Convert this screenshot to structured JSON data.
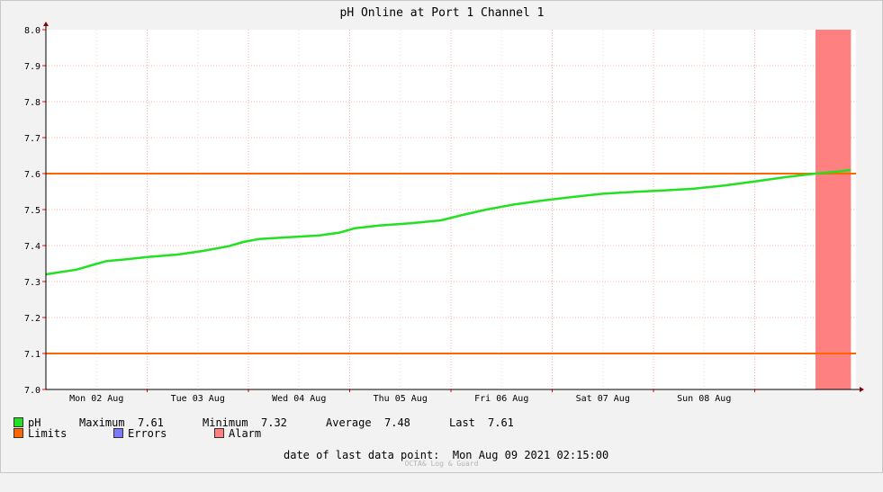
{
  "chart_data": {
    "type": "line",
    "title": "pH Online at Port 1 Channel 1",
    "ylim": [
      7.0,
      8.0
    ],
    "y_ticks": [
      "7.0",
      "7.1",
      "7.2",
      "7.3",
      "7.4",
      "7.5",
      "7.6",
      "7.7",
      "7.8",
      "7.9",
      "8.0"
    ],
    "x_range_days": [
      0,
      8
    ],
    "x_tick_labels": [
      {
        "day": 1,
        "label": "Mon 02 Aug"
      },
      {
        "day": 2,
        "label": "Tue 03 Aug"
      },
      {
        "day": 3,
        "label": "Wed 04 Aug"
      },
      {
        "day": 4,
        "label": "Thu 05 Aug"
      },
      {
        "day": 5,
        "label": "Fri 06 Aug"
      },
      {
        "day": 6,
        "label": "Sat 07 Aug"
      },
      {
        "day": 7,
        "label": "Sun 08 Aug"
      }
    ],
    "series": [
      {
        "name": "pH",
        "color": "#22e022",
        "points": [
          [
            0.0,
            7.32
          ],
          [
            0.3,
            7.333
          ],
          [
            0.45,
            7.345
          ],
          [
            0.6,
            7.357
          ],
          [
            0.8,
            7.362
          ],
          [
            1.0,
            7.368
          ],
          [
            1.3,
            7.375
          ],
          [
            1.55,
            7.385
          ],
          [
            1.8,
            7.398
          ],
          [
            1.95,
            7.41
          ],
          [
            2.1,
            7.418
          ],
          [
            2.4,
            7.423
          ],
          [
            2.7,
            7.428
          ],
          [
            2.9,
            7.436
          ],
          [
            3.05,
            7.448
          ],
          [
            3.3,
            7.456
          ],
          [
            3.6,
            7.462
          ],
          [
            3.9,
            7.47
          ],
          [
            4.1,
            7.484
          ],
          [
            4.35,
            7.5
          ],
          [
            4.6,
            7.513
          ],
          [
            4.9,
            7.525
          ],
          [
            5.2,
            7.535
          ],
          [
            5.5,
            7.544
          ],
          [
            5.8,
            7.549
          ],
          [
            6.1,
            7.553
          ],
          [
            6.4,
            7.558
          ],
          [
            6.7,
            7.567
          ],
          [
            7.0,
            7.578
          ],
          [
            7.3,
            7.59
          ],
          [
            7.6,
            7.6
          ],
          [
            7.8,
            7.605
          ],
          [
            7.95,
            7.61
          ]
        ]
      }
    ],
    "limits": {
      "name": "Limits",
      "color": "#ff6600",
      "values": [
        7.6,
        7.1
      ]
    },
    "alarm": {
      "name": "Alarm",
      "color": "#ff8080",
      "x_start_day": 7.6,
      "x_end_day": 7.95
    },
    "errors": {
      "name": "Errors",
      "color": "#7a7aff"
    },
    "stats": {
      "max_label": "Maximum",
      "max": "7.61",
      "min_label": "Minimum",
      "min": "7.32",
      "avg_label": "Average",
      "avg": "7.48",
      "last_label": "Last",
      "last": "7.61"
    },
    "last_data_label": "date of last data point:",
    "last_data_value": "Mon Aug 09 2021 02:15:00",
    "watermark": "OCTA& Log & Guard"
  }
}
